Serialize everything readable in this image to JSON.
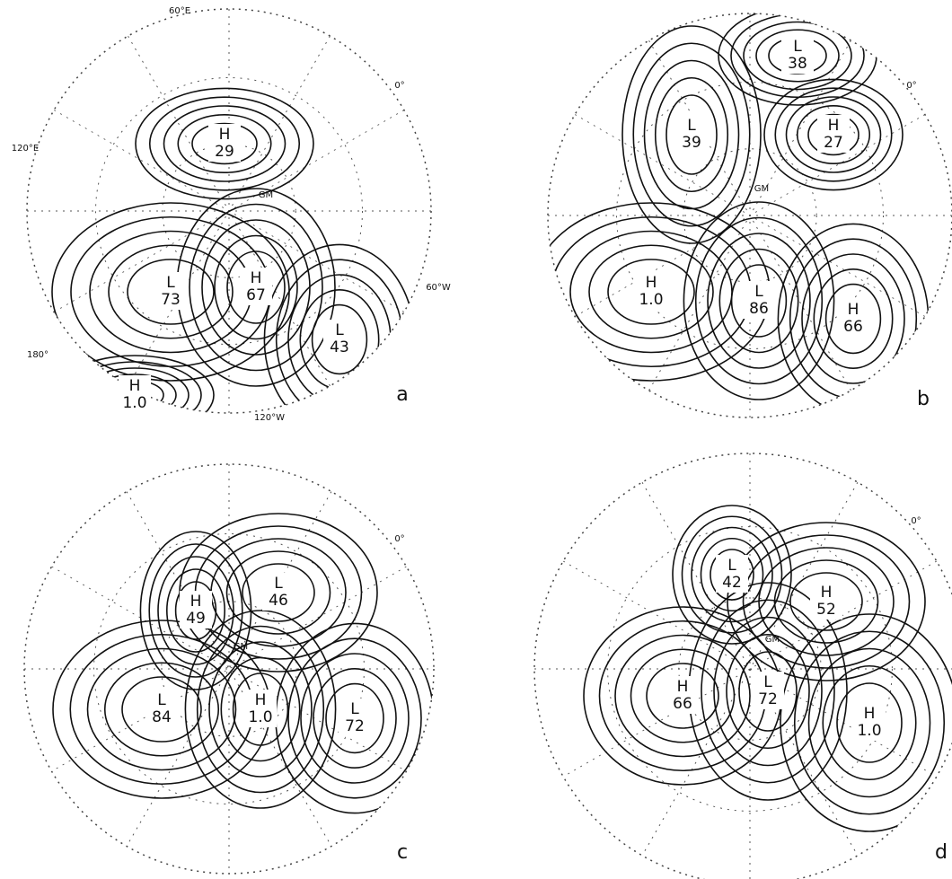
{
  "panels": [
    {
      "label": "a",
      "axis_labels": [
        "60°E",
        "0°",
        "120°E",
        "60°W",
        "180°",
        "120°W"
      ],
      "gm": "GM",
      "centers": [
        {
          "kind": "H",
          "value": "29"
        },
        {
          "kind": "L",
          "value": "73"
        },
        {
          "kind": "H",
          "value": "67"
        },
        {
          "kind": "L",
          "value": "43"
        },
        {
          "kind": "H",
          "value": "1.0"
        }
      ]
    },
    {
      "label": "b",
      "axis_labels": [
        "0°"
      ],
      "gm": "GM",
      "centers": [
        {
          "kind": "L",
          "value": "38"
        },
        {
          "kind": "L",
          "value": "39"
        },
        {
          "kind": "H",
          "value": "27"
        },
        {
          "kind": "H",
          "value": "1.0"
        },
        {
          "kind": "L",
          "value": "86"
        },
        {
          "kind": "H",
          "value": "66"
        }
      ]
    },
    {
      "label": "c",
      "axis_labels": [
        "0°"
      ],
      "gm": "GM",
      "centers": [
        {
          "kind": "H",
          "value": "49"
        },
        {
          "kind": "L",
          "value": "46"
        },
        {
          "kind": "L",
          "value": "84"
        },
        {
          "kind": "H",
          "value": "1.0"
        },
        {
          "kind": "L",
          "value": "72"
        }
      ]
    },
    {
      "label": "d",
      "axis_labels": [
        "0°"
      ],
      "gm": "GM",
      "centers": [
        {
          "kind": "L",
          "value": "42"
        },
        {
          "kind": "H",
          "value": "52"
        },
        {
          "kind": "H",
          "value": "66"
        },
        {
          "kind": "L",
          "value": "72"
        },
        {
          "kind": "H",
          "value": "1.0"
        }
      ]
    }
  ]
}
